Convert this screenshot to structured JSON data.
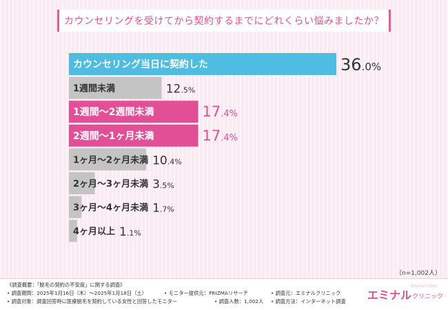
{
  "title": "カウンセリングを受けてから契約するまでにどれくらい悩みましたか？",
  "sample_size": "（n=1,002人）",
  "colors": {
    "blue": "#4fbde1",
    "pink": "#e24f97",
    "gray": "#c4c4c4",
    "accent": "#e75a97"
  },
  "chart_data": {
    "type": "bar",
    "orientation": "horizontal",
    "title": "カウンセリングを受けてから契約するまでにどれくらい悩みましたか？",
    "unit": "%",
    "xlim": [
      0,
      36.0
    ],
    "categories": [
      "カウンセリング当日に契約した",
      "1週間未満",
      "1週間〜2週間未満",
      "2週間〜1ヶ月未満",
      "1ヶ月〜2ヶ月未満",
      "2ヶ月〜3ヶ月未満",
      "3ヶ月〜4ヶ月未満",
      "4ヶ月以上"
    ],
    "values": [
      36.0,
      12.5,
      17.4,
      17.4,
      10.4,
      3.5,
      1.7,
      1.1
    ],
    "value_labels": [
      {
        "int": "36",
        "dec": ".0%"
      },
      {
        "int": "12",
        "dec": ".5%"
      },
      {
        "int": "17",
        "dec": ".4%"
      },
      {
        "int": "17",
        "dec": ".4%"
      },
      {
        "int": "10",
        "dec": ".4%"
      },
      {
        "int": "3",
        "dec": ".5%"
      },
      {
        "int": "1",
        "dec": ".7%"
      },
      {
        "int": "1",
        "dec": ".1%"
      }
    ],
    "bar_colors": [
      "blue",
      "gray",
      "pink",
      "pink",
      "gray",
      "gray",
      "gray",
      "gray"
    ]
  },
  "footer": {
    "line1": "《調査概要：「脱毛の契約の不安度」に関する調査》",
    "period": "• 調査期間：2025年1月16日（木）〜2025年1月18日（土）",
    "provider": "• モニター提供元：PRIZMAリサーチ",
    "source": "• 調査元：エミナルクリニック",
    "target": "• 調査対象：調査回答時に医療脱毛を契約している女性と回答したモニター",
    "count": "• 調査人数：1,002人",
    "method": "• 調査方法：インターネット調査"
  },
  "logo": {
    "main": "エミナル",
    "sub": "クリニック",
    "watermark": "Eminal Clinic"
  }
}
